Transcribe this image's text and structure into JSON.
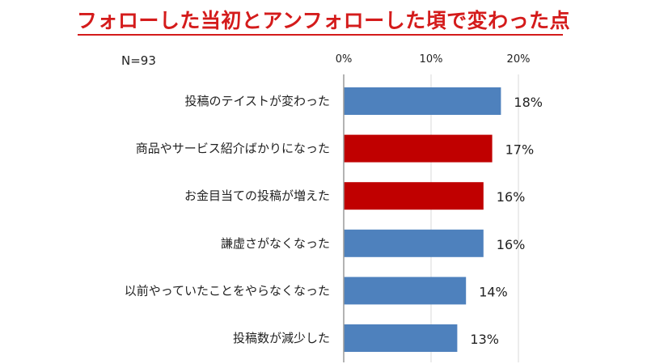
{
  "header": {
    "title": "フォローした当初とアンフォローした頃で変わった点",
    "sample_size": "N=93"
  },
  "colors": {
    "title": "#d41b1b",
    "bar_blue": "#4e81bd",
    "bar_red": "#c00000",
    "axis": "#9a9a9a"
  },
  "chart_data": {
    "type": "bar",
    "orientation": "horizontal",
    "title": "フォローした当初とアンフォローした頃で変わった点",
    "xlabel": "",
    "ylabel": "",
    "xlim": [
      0,
      23
    ],
    "x_ticks": [
      0,
      10,
      20
    ],
    "x_tick_labels": [
      "0%",
      "10%",
      "20%"
    ],
    "grid": true,
    "legend": "none",
    "categories": [
      "投稿のテイストが変わった",
      "商品やサービス紹介ばかりになった",
      "お金目当ての投稿が増えた",
      "謙虚さがなくなった",
      "以前やっていたことをやらなくなった",
      "投稿数が減少した"
    ],
    "values": [
      18,
      17,
      16,
      16,
      14,
      13
    ],
    "value_labels": [
      "18%",
      "17%",
      "16%",
      "16%",
      "14%",
      "13%"
    ],
    "bar_colors": [
      "#4e81bd",
      "#c00000",
      "#c00000",
      "#4e81bd",
      "#4e81bd",
      "#4e81bd"
    ]
  }
}
